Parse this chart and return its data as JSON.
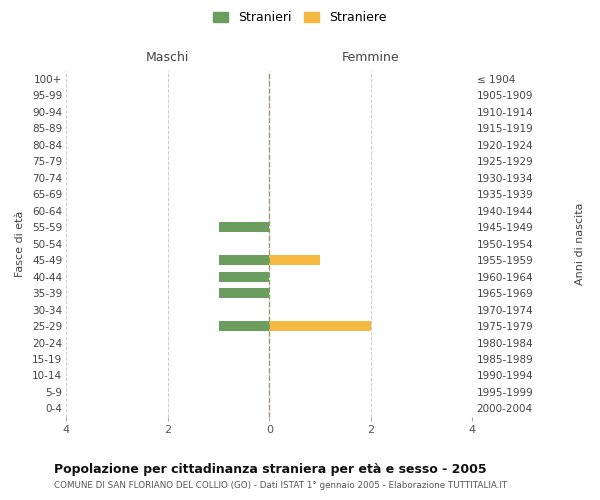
{
  "age_groups": [
    "100+",
    "95-99",
    "90-94",
    "85-89",
    "80-84",
    "75-79",
    "70-74",
    "65-69",
    "60-64",
    "55-59",
    "50-54",
    "45-49",
    "40-44",
    "35-39",
    "30-34",
    "25-29",
    "20-24",
    "15-19",
    "10-14",
    "5-9",
    "0-4"
  ],
  "birth_years": [
    "≤ 1904",
    "1905-1909",
    "1910-1914",
    "1915-1919",
    "1920-1924",
    "1925-1929",
    "1930-1934",
    "1935-1939",
    "1940-1944",
    "1945-1949",
    "1950-1954",
    "1955-1959",
    "1960-1964",
    "1965-1969",
    "1970-1974",
    "1975-1979",
    "1980-1984",
    "1985-1989",
    "1990-1994",
    "1995-1999",
    "2000-2004"
  ],
  "males": [
    0,
    0,
    0,
    0,
    0,
    0,
    0,
    0,
    0,
    1,
    0,
    1,
    1,
    1,
    0,
    1,
    0,
    0,
    0,
    0,
    0
  ],
  "females": [
    0,
    0,
    0,
    0,
    0,
    0,
    0,
    0,
    0,
    0,
    0,
    1,
    0,
    0,
    0,
    2,
    0,
    0,
    0,
    0,
    0
  ],
  "male_color": "#6b9e5e",
  "female_color": "#f5b942",
  "male_label": "Stranieri",
  "female_label": "Straniere",
  "xlim": 4,
  "title": "Popolazione per cittadinanza straniera per età e sesso - 2005",
  "subtitle": "COMUNE DI SAN FLORIANO DEL COLLIO (GO) - Dati ISTAT 1° gennaio 2005 - Elaborazione TUTTITALIA.IT",
  "ylabel_left": "Fasce di età",
  "ylabel_right": "Anni di nascita",
  "xlabel_maschi": "Maschi",
  "xlabel_femmine": "Femmine",
  "bg_color": "#ffffff",
  "grid_color": "#cccccc",
  "center_line_color": "#999966",
  "legend_marker_size": 12
}
